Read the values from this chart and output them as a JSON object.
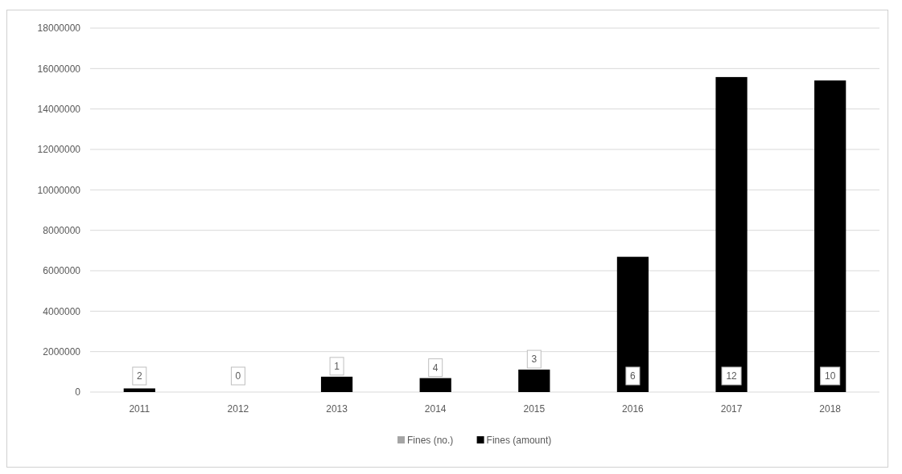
{
  "chart_data": {
    "type": "bar",
    "categories": [
      "2011",
      "2012",
      "2013",
      "2014",
      "2015",
      "2016",
      "2017",
      "2018"
    ],
    "series": [
      {
        "name": "Fines (no.)",
        "color": "#a5a5a5",
        "values": [
          2,
          0,
          1,
          4,
          3,
          6,
          12,
          10
        ],
        "value_labels": [
          "2",
          "0",
          "1",
          "4",
          "3",
          "6",
          "12",
          "10"
        ]
      },
      {
        "name": "Fines (amount)",
        "color": "#000000",
        "values": [
          180000,
          0,
          760000,
          690000,
          1110000,
          6690000,
          15580000,
          15410000
        ]
      }
    ],
    "ylim": [
      0,
      18000000
    ],
    "yticks": [
      0,
      2000000,
      4000000,
      6000000,
      8000000,
      10000000,
      12000000,
      14000000,
      16000000,
      18000000
    ],
    "grid": "y",
    "legend": "bottom"
  }
}
